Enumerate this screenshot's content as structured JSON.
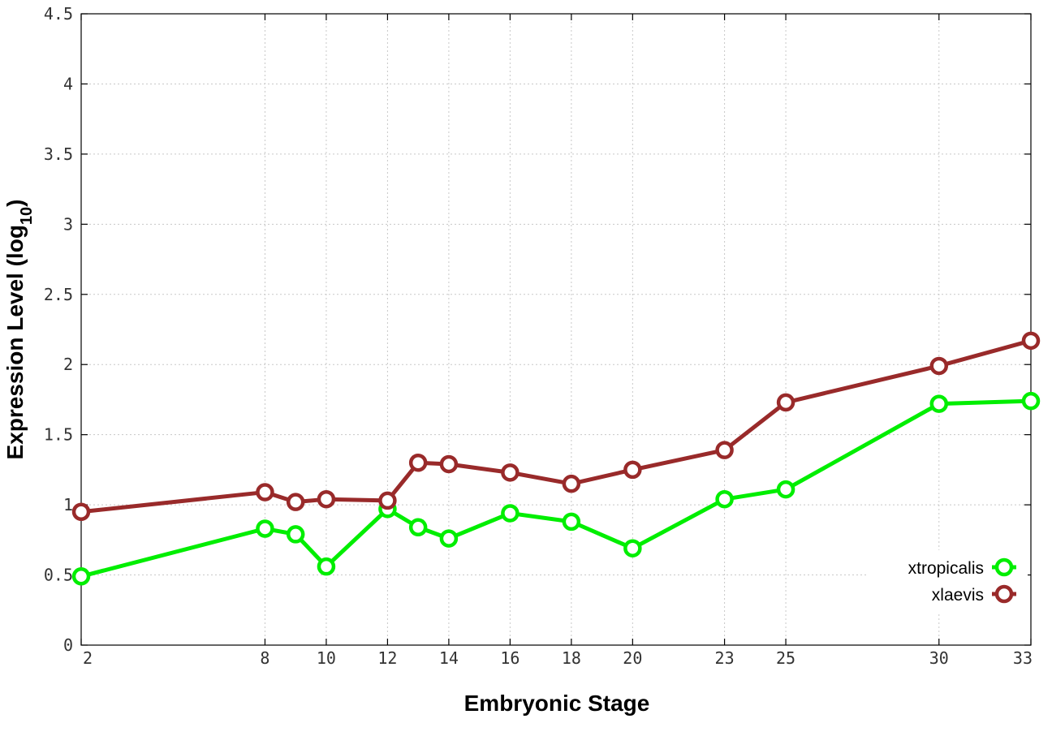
{
  "chart_data": {
    "type": "line",
    "xlabel": "Embryonic Stage",
    "ylabel": "Expression Level (log",
    "ylabel_subscript": "10",
    "ylabel_suffix": ")",
    "x_ticks": [
      2,
      8,
      10,
      12,
      14,
      16,
      18,
      20,
      23,
      25,
      30,
      33
    ],
    "y_ticks": [
      "0",
      "0.5",
      "1",
      "1.5",
      "2",
      "2.5",
      "3",
      "3.5",
      "4",
      "4.5"
    ],
    "xlim": [
      2,
      33
    ],
    "ylim": [
      0,
      4.5
    ],
    "grid": true,
    "legend_position": "bottom-right",
    "x": [
      2,
      8,
      9,
      10,
      12,
      13,
      14,
      16,
      18,
      20,
      23,
      25,
      30,
      33
    ],
    "series": [
      {
        "name": "xtropicalis",
        "color": "#00ee00",
        "values": [
          0.49,
          0.83,
          0.79,
          0.56,
          0.97,
          0.84,
          0.76,
          0.94,
          0.88,
          0.69,
          1.04,
          1.11,
          1.72,
          1.74
        ]
      },
      {
        "name": "xlaevis",
        "color": "#992a2a",
        "values": [
          0.95,
          1.09,
          1.02,
          1.04,
          1.03,
          1.3,
          1.29,
          1.23,
          1.15,
          1.25,
          1.39,
          1.73,
          1.99,
          2.17
        ]
      }
    ]
  }
}
